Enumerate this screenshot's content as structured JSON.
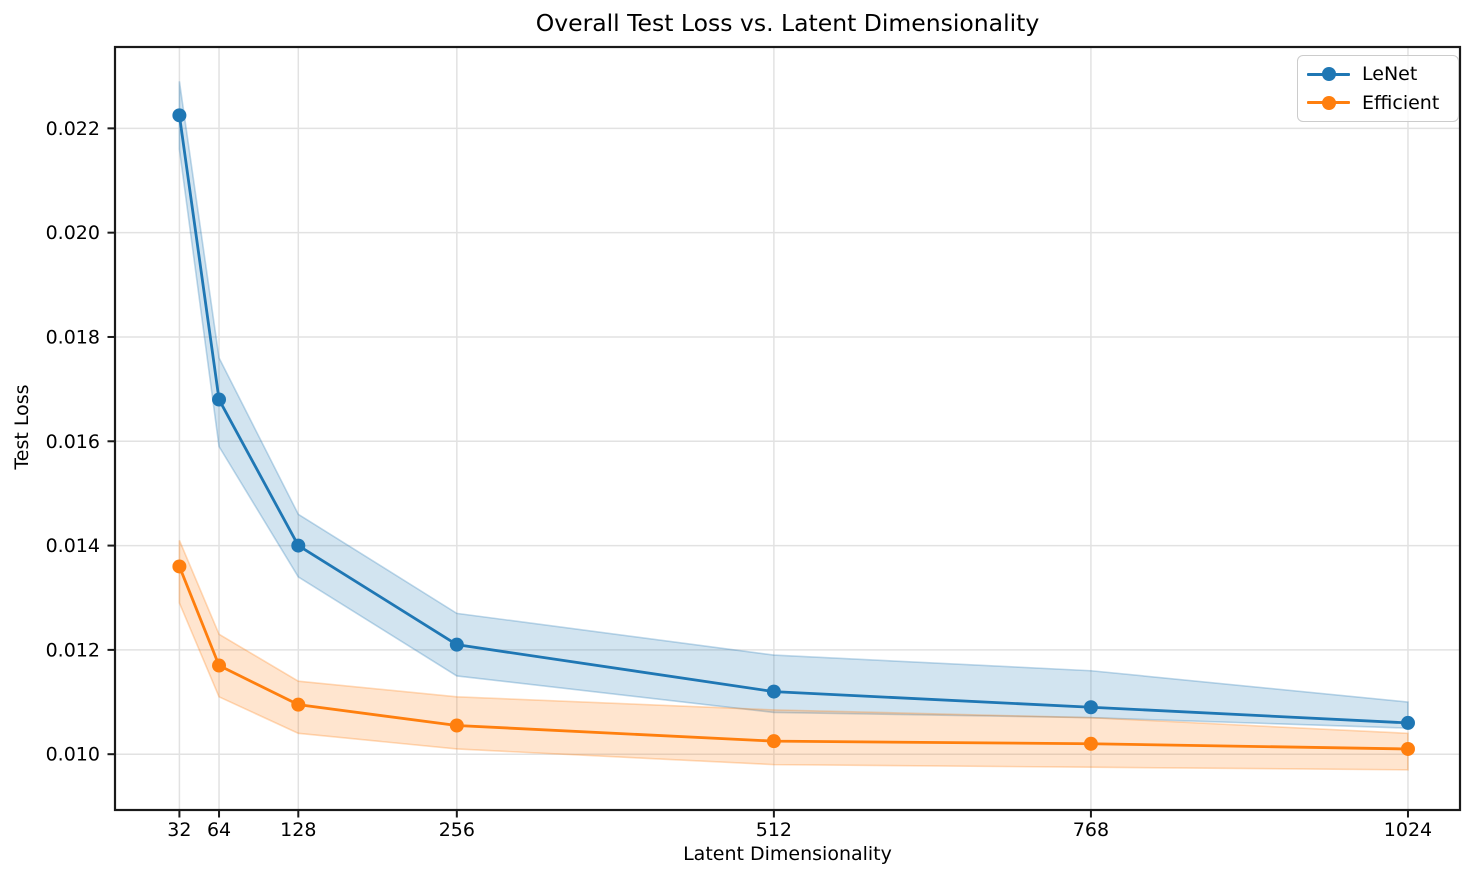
{
  "chart_data": {
    "type": "line",
    "title": "Overall Test Loss vs. Latent Dimensionality",
    "xlabel": "Latent Dimensionality",
    "ylabel": "Test Loss",
    "x": [
      32,
      64,
      128,
      256,
      512,
      768,
      1024
    ],
    "x_tick_labels": [
      "32",
      "64",
      "128",
      "256",
      "512",
      "768",
      "1024"
    ],
    "y_ticks": [
      0.01,
      0.012,
      0.014,
      0.016,
      0.018,
      0.02,
      0.022
    ],
    "y_tick_labels": [
      "0.010",
      "0.012",
      "0.014",
      "0.016",
      "0.018",
      "0.020",
      "0.022"
    ],
    "xlim": [
      -20,
      1066
    ],
    "ylim": [
      0.00893,
      0.02356
    ],
    "grid": true,
    "grid_color": "#e2e2e2",
    "spine_color": "#1a1a1a",
    "legend_position": "upper right",
    "band_opacity": 0.2,
    "series": [
      {
        "name": "LeNet",
        "color": "#1f77b4",
        "values": [
          0.02225,
          0.0168,
          0.014,
          0.0121,
          0.0112,
          0.0109,
          0.0106
        ],
        "band_low": [
          0.0216,
          0.0159,
          0.0134,
          0.0115,
          0.0108,
          0.0107,
          0.0105
        ],
        "band_high": [
          0.0229,
          0.0176,
          0.0146,
          0.0127,
          0.0119,
          0.0116,
          0.011
        ]
      },
      {
        "name": "Efficient",
        "color": "#ff7f0e",
        "values": [
          0.0136,
          0.0117,
          0.01095,
          0.01055,
          0.01025,
          0.0102,
          0.0101
        ],
        "band_low": [
          0.0129,
          0.0111,
          0.0104,
          0.0101,
          0.0098,
          0.00975,
          0.0097
        ],
        "band_high": [
          0.0141,
          0.0123,
          0.0114,
          0.0111,
          0.01085,
          0.0107,
          0.0104
        ]
      }
    ]
  }
}
